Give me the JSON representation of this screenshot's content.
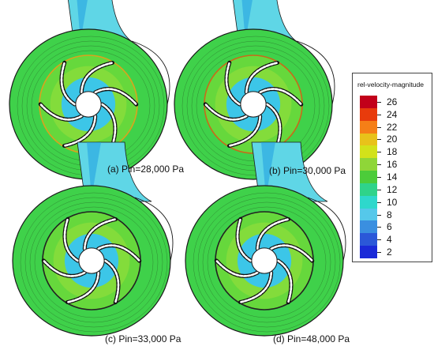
{
  "panels": [
    {
      "caption": "(a) Pin=28,000 Pa"
    },
    {
      "caption": "(b) Pin=30,000 Pa"
    },
    {
      "caption": "(c) Pin=33,000 Pa"
    },
    {
      "caption": "(d) Pin=48,000 Pa"
    }
  ],
  "legend": {
    "title": "rel-velocity-magnitude",
    "ticks": [
      "26",
      "24",
      "22",
      "20",
      "18",
      "16",
      "14",
      "12",
      "10",
      "8",
      "6",
      "4",
      "2"
    ],
    "colors": [
      "#c2001a",
      "#e83b0c",
      "#f57f17",
      "#e8c21a",
      "#d2e21a",
      "#8fd638",
      "#4ccc3a",
      "#2fd38a",
      "#2ed8cc",
      "#55c8ea",
      "#3a8fe0",
      "#2b58d8",
      "#1a2ad8"
    ]
  },
  "palette": {
    "volute_green": "#3fd14a",
    "outlet_cyan": "#5fd6e6",
    "impeller_cyan": "#3cc6e8",
    "eye_white": "#ffffff",
    "blade_black": "#111111"
  }
}
